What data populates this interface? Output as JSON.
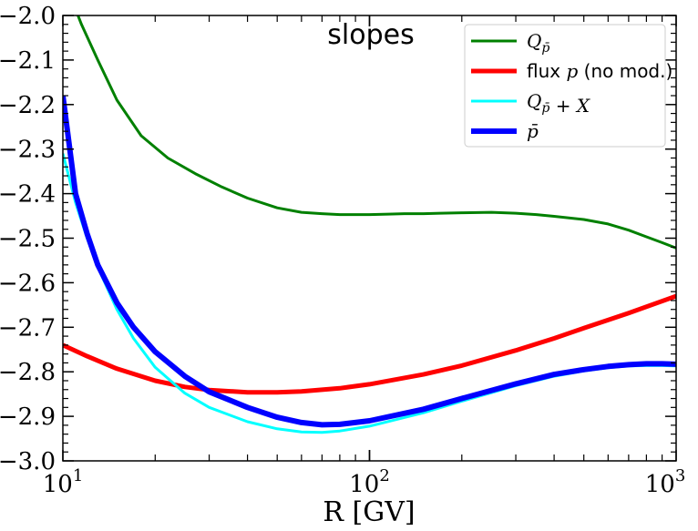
{
  "chart_data": {
    "type": "line",
    "title": "slopes",
    "xlabel": "R [GV]",
    "ylabel": "",
    "xscale": "log",
    "xlim": [
      10,
      1000
    ],
    "ylim": [
      -3.0,
      -2.0
    ],
    "grid": false,
    "legend_position": "top-right",
    "x_tick_labels": [
      {
        "value": 10,
        "base": "10",
        "exp": "1"
      },
      {
        "value": 100,
        "base": "10",
        "exp": "2"
      },
      {
        "value": 1000,
        "base": "10",
        "exp": "3"
      }
    ],
    "y_tick_labels": [
      {
        "value": -2.0,
        "label": "−2.0"
      },
      {
        "value": -2.1,
        "label": "−2.1"
      },
      {
        "value": -2.2,
        "label": "−2.2"
      },
      {
        "value": -2.3,
        "label": "−2.3"
      },
      {
        "value": -2.4,
        "label": "−2.4"
      },
      {
        "value": -2.5,
        "label": "−2.5"
      },
      {
        "value": -2.6,
        "label": "−2.6"
      },
      {
        "value": -2.7,
        "label": "−2.7"
      },
      {
        "value": -2.8,
        "label": "−2.8"
      },
      {
        "value": -2.9,
        "label": "−2.9"
      },
      {
        "value": -3.0,
        "label": "−3.0"
      }
    ],
    "series": [
      {
        "key": "q-pbar",
        "name": "Q_p̄",
        "legend_parts": [
          {
            "t": "Q",
            "m": true
          },
          {
            "t": "p̄",
            "m": true,
            "sub": true
          }
        ],
        "color": "#008000",
        "width": 3,
        "x": [
          10.5,
          11.5,
          13,
          15,
          18,
          22,
          27,
          33,
          40,
          50,
          60,
          70,
          80,
          100,
          115,
          130,
          150,
          170,
          200,
          250,
          300,
          350,
          400,
          500,
          600,
          700,
          800,
          900,
          1000
        ],
        "y": [
          -1.95,
          -2.02,
          -2.1,
          -2.19,
          -2.27,
          -2.32,
          -2.355,
          -2.385,
          -2.41,
          -2.432,
          -2.442,
          -2.445,
          -2.447,
          -2.447,
          -2.446,
          -2.445,
          -2.445,
          -2.444,
          -2.443,
          -2.442,
          -2.444,
          -2.447,
          -2.451,
          -2.458,
          -2.468,
          -2.482,
          -2.497,
          -2.51,
          -2.522
        ]
      },
      {
        "key": "flux-p",
        "name": "flux p (no mod.)",
        "legend_parts": [
          {
            "t": "flux ",
            "m": false
          },
          {
            "t": "p",
            "m": true
          },
          {
            "t": " (no mod.)",
            "m": false
          }
        ],
        "color": "#ff0000",
        "width": 5,
        "x": [
          10,
          12,
          15,
          20,
          25,
          30,
          40,
          50,
          60,
          80,
          100,
          150,
          200,
          300,
          400,
          500,
          700,
          1000
        ],
        "y": [
          -2.74,
          -2.765,
          -2.793,
          -2.82,
          -2.834,
          -2.841,
          -2.846,
          -2.846,
          -2.844,
          -2.837,
          -2.828,
          -2.806,
          -2.786,
          -2.752,
          -2.725,
          -2.702,
          -2.668,
          -2.63
        ]
      },
      {
        "key": "q-pbar-x",
        "name": "Q_p̄ + X",
        "legend_parts": [
          {
            "t": "Q",
            "m": true
          },
          {
            "t": "p̄",
            "m": true,
            "sub": true
          },
          {
            "t": " + X",
            "m": true
          }
        ],
        "color": "#00ffff",
        "width": 3,
        "x": [
          10,
          11,
          12,
          13,
          15,
          17,
          20,
          25,
          30,
          40,
          50,
          60,
          70,
          80,
          100,
          150,
          200,
          300,
          400,
          500,
          600,
          700,
          800,
          900,
          1000
        ],
        "y": [
          -2.31,
          -2.42,
          -2.5,
          -2.565,
          -2.66,
          -2.725,
          -2.79,
          -2.848,
          -2.88,
          -2.912,
          -2.928,
          -2.935,
          -2.936,
          -2.933,
          -2.922,
          -2.892,
          -2.866,
          -2.831,
          -2.81,
          -2.798,
          -2.791,
          -2.787,
          -2.786,
          -2.786,
          -2.787
        ]
      },
      {
        "key": "pbar",
        "name": "p̄",
        "legend_parts": [
          {
            "t": "p̄",
            "m": true
          }
        ],
        "color": "#0000ff",
        "width": 6,
        "x": [
          10,
          11,
          12,
          13,
          15,
          17,
          20,
          25,
          30,
          40,
          50,
          60,
          70,
          80,
          100,
          150,
          200,
          300,
          400,
          500,
          600,
          700,
          800,
          900,
          1000
        ],
        "y": [
          -2.18,
          -2.4,
          -2.49,
          -2.56,
          -2.645,
          -2.7,
          -2.755,
          -2.81,
          -2.845,
          -2.88,
          -2.902,
          -2.914,
          -2.919,
          -2.918,
          -2.91,
          -2.884,
          -2.86,
          -2.827,
          -2.806,
          -2.795,
          -2.788,
          -2.784,
          -2.782,
          -2.782,
          -2.783
        ]
      }
    ]
  }
}
